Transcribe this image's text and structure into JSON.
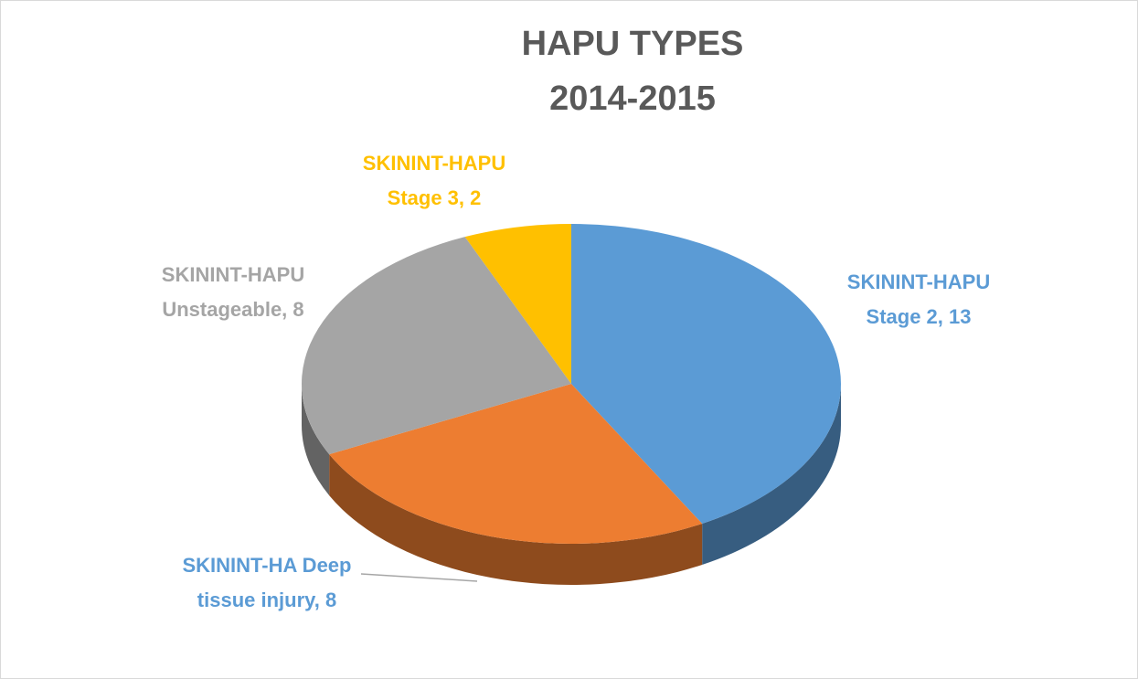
{
  "chart_data": {
    "type": "pie3d",
    "title": [
      "HAPU TYPES",
      "2014-2015"
    ],
    "values": [
      13,
      8,
      8,
      2
    ],
    "value_labels": [
      [
        "SKININT-HAPU",
        "Stage 2, 13"
      ],
      [
        "SKININT-HA Deep",
        "tissue injury, 8"
      ],
      [
        "SKININT-HAPU",
        "Unstageable, 8"
      ],
      [
        "SKININT-HAPU",
        "Stage 3, 2"
      ]
    ],
    "colors": [
      "#5b9bd5",
      "#ed7d31",
      "#a5a5a5",
      "#ffc000"
    ]
  }
}
